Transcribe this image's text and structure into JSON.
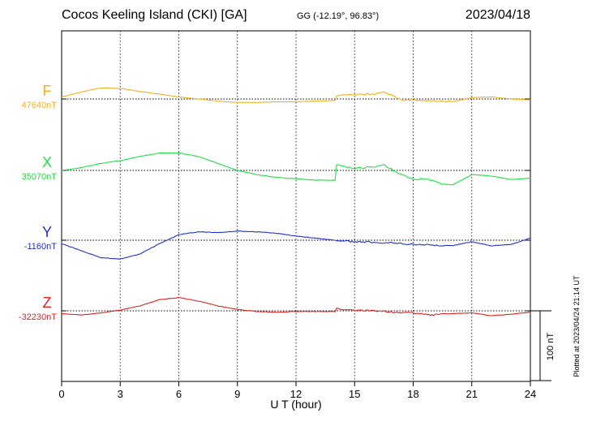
{
  "header": {
    "title": "Cocos Keeling Island (CKI)  [GA]",
    "coords": "GG (-12.19°,  96.83°)",
    "date": "2023/04/18"
  },
  "footer": {
    "plotted": "Plotted at 2023/04/24 21:14 UT"
  },
  "chart_data": {
    "type": "line",
    "xlabel": "U T (hour)",
    "xlim": [
      0,
      24
    ],
    "xticks": [
      "0",
      "3",
      "6",
      "9",
      "12",
      "15",
      "18",
      "21",
      "24"
    ],
    "grid": true,
    "scale_bar": {
      "label": "100 nT",
      "nT": 100
    },
    "series": [
      {
        "name": "F",
        "baseline_label": "47640nT",
        "baseline": 47640,
        "color": "#f0b020",
        "x": [
          0,
          1,
          2,
          3,
          4,
          5,
          6,
          7,
          8,
          9,
          10,
          11,
          12,
          13,
          14,
          14.1,
          15,
          16,
          16.5,
          17,
          17.5,
          18,
          19,
          20,
          21,
          22,
          23,
          24
        ],
        "y": [
          47643,
          47650,
          47656,
          47655,
          47651,
          47647,
          47643,
          47640,
          47637,
          47635,
          47635,
          47636,
          47636,
          47637,
          47638,
          47645,
          47646,
          47647,
          47650,
          47644,
          47638,
          47639,
          47637,
          47636,
          47642,
          47643,
          47640,
          47639
        ]
      },
      {
        "name": "X",
        "baseline_label": "35070nT",
        "baseline": 35070,
        "color": "#20e040",
        "x": [
          0,
          1,
          2,
          3,
          4,
          5,
          6,
          7,
          8,
          9,
          10,
          11,
          12,
          13,
          14,
          14.05,
          15,
          16,
          16.5,
          17,
          17.5,
          18,
          18.5,
          19,
          19.5,
          20,
          21,
          22,
          23,
          24
        ],
        "y": [
          35070,
          35074,
          35080,
          35084,
          35090,
          35095,
          35095,
          35090,
          35080,
          35070,
          35064,
          35060,
          35058,
          35056,
          35056,
          35078,
          35073,
          35075,
          35078,
          35070,
          35063,
          35057,
          35058,
          35056,
          35050,
          35049,
          35064,
          35062,
          35057,
          35059
        ]
      },
      {
        "name": "Y",
        "baseline_label": "-1160nT",
        "baseline": -1160,
        "color": "#2030d0",
        "x": [
          0,
          1,
          2,
          3,
          4,
          5,
          6,
          7,
          8,
          9,
          10,
          11,
          12,
          13,
          14,
          15,
          16,
          17,
          18,
          19,
          20,
          21,
          22,
          23,
          24
        ],
        "y": [
          -1165,
          -1175,
          -1185,
          -1187,
          -1180,
          -1165,
          -1152,
          -1148,
          -1149,
          -1147,
          -1148,
          -1150,
          -1154,
          -1157,
          -1160,
          -1162,
          -1163,
          -1164,
          -1166,
          -1167,
          -1168,
          -1162,
          -1168,
          -1166,
          -1157
        ]
      },
      {
        "name": "Z",
        "baseline_label": "-32230nT",
        "baseline": -32230,
        "color": "#e02020",
        "x": [
          0,
          1,
          2,
          3,
          4,
          5,
          6,
          7,
          8,
          9,
          10,
          11,
          12,
          13,
          14,
          14.05,
          15,
          16,
          17,
          18,
          19,
          20,
          21,
          22,
          23,
          24
        ],
        "y": [
          -32234,
          -32236,
          -32233,
          -32229,
          -32223,
          -32214,
          -32211,
          -32216,
          -32223,
          -32228,
          -32231,
          -32232,
          -32231,
          -32231,
          -32231,
          -32227,
          -32229,
          -32230,
          -32232,
          -32233,
          -32236,
          -32234,
          -32233,
          -32237,
          -32235,
          -32232
        ]
      }
    ]
  }
}
